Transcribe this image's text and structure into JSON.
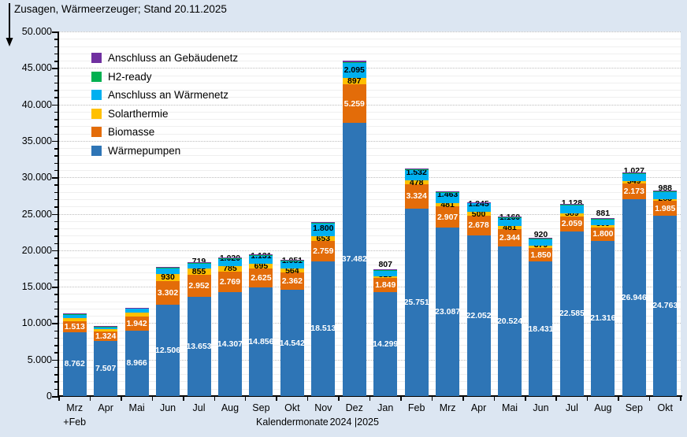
{
  "title": "Zusagen, Wärmeerzeuger; Stand 20.11.2025",
  "colors": {
    "background": "#dce6f2",
    "plot_background": "#ffffff",
    "axis": "#000000",
    "grid_major": "#bdbdbd",
    "grid_minor": "#efefef"
  },
  "legend": [
    {
      "label": "Anschluss an Gebäudenetz",
      "color": "#7030a0"
    },
    {
      "label": "H2-ready",
      "color": "#00b050"
    },
    {
      "label": "Anschluss an Wärmenetz",
      "color": "#00b0f0"
    },
    {
      "label": "Solarthermie",
      "color": "#ffc000"
    },
    {
      "label": "Biomasse",
      "color": "#e36c09"
    },
    {
      "label": "Wärmepumpen",
      "color": "#2e75b6"
    }
  ],
  "chart_data": {
    "type": "bar",
    "stacked": true,
    "title": "Zusagen, Wärmeerzeuger; Stand 20.11.2025",
    "xlabel": "Kalendermonate",
    "ylim": [
      0,
      50000
    ],
    "y_major_step": 5000,
    "y_minor_step": 1000,
    "grid": true,
    "legend_position": "top-left-inside",
    "y_tick_labels": [
      "0",
      "5.000",
      "10.000",
      "15.000",
      "20.000",
      "25.000",
      "30.000",
      "35.000",
      "40.000",
      "45.000",
      "50.000"
    ],
    "categories": [
      "Mrz",
      "Apr",
      "Mai",
      "Jun",
      "Jul",
      "Aug",
      "Sep",
      "Okt",
      "Nov",
      "Dez",
      "Jan",
      "Feb",
      "Mrz",
      "Apr",
      "Mai",
      "Jun",
      "Jul",
      "Aug",
      "Sep",
      "Okt"
    ],
    "category_sublabels": [
      {
        "index": 0,
        "text": "+Feb"
      },
      {
        "index": 7,
        "text": "Kalendermonate"
      },
      {
        "index": 9,
        "text": "2024 |2025"
      }
    ],
    "series": [
      {
        "name": "Wärmepumpen",
        "color": "#2e75b6",
        "label_color": "#ffffff",
        "values": [
          8762,
          7507,
          8966,
          12506,
          13653,
          14307,
          14856,
          14542,
          18513,
          37482,
          14299,
          25751,
          23087,
          22052,
          20524,
          18431,
          22585,
          21316,
          26946,
          24763
        ],
        "labels": [
          "8.762",
          "7.507",
          "8.966",
          "12.506",
          "13.653",
          "14.307",
          "14.856",
          "14.542",
          "18.513",
          "37.482",
          "14.299",
          "25.751",
          "23.087",
          "22.052",
          "20.524",
          "18.431",
          "22.585",
          "21.316",
          "26.946",
          "24.763"
        ]
      },
      {
        "name": "Biomasse",
        "color": "#e36c09",
        "label_color": "#ffffff",
        "values": [
          1513,
          1324,
          1942,
          3302,
          2952,
          2769,
          2625,
          2362,
          2759,
          5259,
          1849,
          3324,
          2907,
          2678,
          2344,
          1850,
          2059,
          1800,
          2173,
          1985
        ],
        "labels": [
          "1.513",
          "1.324",
          "1.942",
          "3.302",
          "2.952",
          "2.769",
          "2.625",
          "2.362",
          "2.759",
          "5.259",
          "1.849",
          "3.324",
          "2.907",
          "2.678",
          "2.344",
          "1.850",
          "2.059",
          "1.800",
          "2.173",
          "1.985"
        ]
      },
      {
        "name": "Solarthermie",
        "color": "#ffc000",
        "label_color": "#000000",
        "values": [
          450,
          300,
          500,
          930,
          855,
          785,
          695,
          564,
          653,
          897,
          315,
          478,
          481,
          500,
          481,
          379,
          389,
          309,
          349,
          283
        ],
        "labels": [
          null,
          null,
          null,
          "930",
          "855",
          "785",
          "695",
          "564",
          "653",
          "897",
          "315",
          "478",
          "481",
          "500",
          "481",
          "379",
          "389",
          "309",
          "349",
          "283"
        ]
      },
      {
        "name": "Anschluss an Wärmenetz",
        "color": "#00b0f0",
        "label_color": "#000000",
        "values": [
          480,
          380,
          600,
          850,
          719,
          1020,
          1131,
          1051,
          1800,
          2095,
          807,
          1532,
          1463,
          1245,
          1160,
          920,
          1128,
          881,
          1027,
          988
        ],
        "labels": [
          null,
          null,
          null,
          null,
          "719",
          "1.020",
          "1.131",
          "1.051",
          "1.800",
          "2.095",
          "807",
          "1.532",
          "1.463",
          "1.245",
          "1.160",
          "920",
          "1.128",
          "881",
          "1.027",
          "988"
        ]
      },
      {
        "name": "H2-ready",
        "color": "#00b050",
        "label_color": "#000000",
        "estimated": true,
        "values": [
          40,
          40,
          40,
          40,
          40,
          40,
          40,
          40,
          40,
          60,
          40,
          40,
          40,
          40,
          40,
          40,
          40,
          40,
          40,
          40
        ],
        "labels": [
          null,
          null,
          null,
          null,
          null,
          null,
          null,
          null,
          null,
          null,
          null,
          null,
          null,
          null,
          null,
          null,
          null,
          null,
          null,
          null
        ]
      },
      {
        "name": "Anschluss an Gebäudenetz",
        "color": "#7030a0",
        "label_color": "#000000",
        "estimated": true,
        "values": [
          100,
          100,
          100,
          100,
          100,
          100,
          100,
          100,
          100,
          200,
          100,
          100,
          100,
          100,
          100,
          100,
          100,
          100,
          100,
          100
        ],
        "labels": [
          null,
          null,
          null,
          null,
          null,
          null,
          null,
          null,
          null,
          null,
          null,
          null,
          null,
          null,
          null,
          null,
          null,
          null,
          null,
          null
        ]
      }
    ]
  }
}
